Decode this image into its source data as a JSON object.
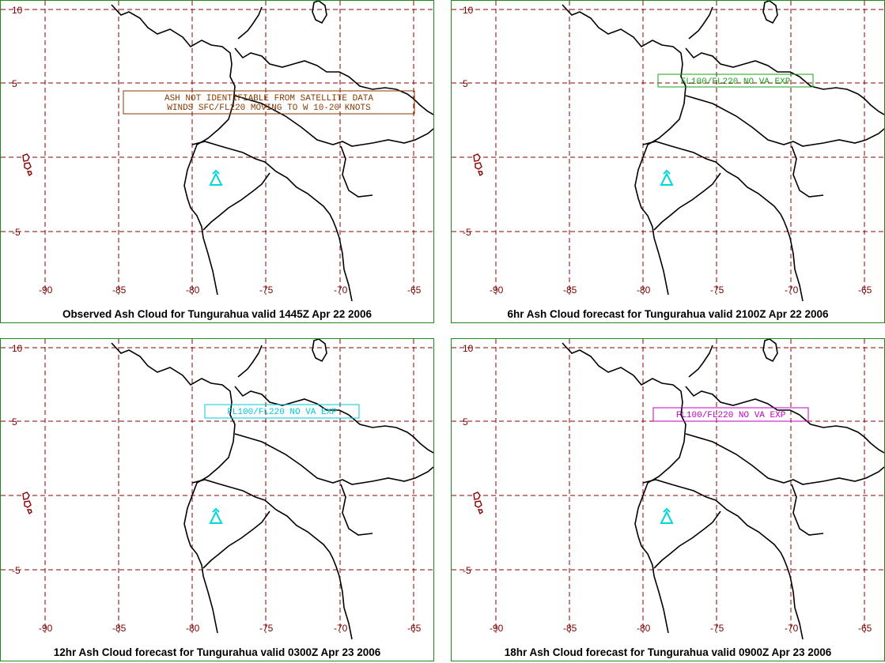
{
  "map_axes": {
    "lon_ticks": [
      "-90",
      "-85",
      "-80",
      "-75",
      "-70",
      "-65"
    ],
    "lat_ticks": [
      "10",
      "5",
      "0",
      "-5"
    ]
  },
  "colors": {
    "grid": "#8b0000",
    "coast": "#000000",
    "volcano": "#00d8d8",
    "frame": "#1a8a1a"
  },
  "volcano": {
    "name": "Tungurahua",
    "icon": "volcano-triangle-icon"
  },
  "panels": [
    {
      "caption": "Observed Ash Cloud for Tungurahua valid 1445Z Apr 22 2006",
      "box_lines": [
        "ASH NOT IDENTIFIABLE FROM SATELLITE DATA",
        "WINDS SFC/FL220 MOVING TO W 10-20 KNOTS"
      ],
      "box_color": "#8b3a00"
    },
    {
      "caption": "6hr Ash Cloud forecast for Tungurahua valid 2100Z Apr 22 2006",
      "box_lines": [
        "FL100/FL220 NO VA EXP"
      ],
      "box_color": "#1aa01a"
    },
    {
      "caption": "12hr Ash Cloud forecast for Tungurahua valid 0300Z Apr 23 2006",
      "box_lines": [
        "FL100/FL220 NO VA EXP"
      ],
      "box_color": "#00c8d8"
    },
    {
      "caption": "18hr Ash Cloud forecast for Tungurahua valid 0900Z Apr 23 2006",
      "box_lines": [
        "FL100/FL220 NO VA EXP"
      ],
      "box_color": "#c000c0"
    }
  ]
}
